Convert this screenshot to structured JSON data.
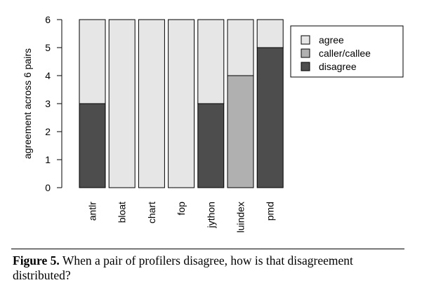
{
  "chart_data": {
    "type": "bar",
    "stacked": true,
    "title": "",
    "xlabel": "",
    "ylabel": "agreement across 6 pairs",
    "ylim": [
      0,
      6
    ],
    "yticks": [
      "0",
      "1",
      "2",
      "3",
      "4",
      "5",
      "6"
    ],
    "categories": [
      "antlr",
      "bloat",
      "chart",
      "fop",
      "jython",
      "luindex",
      "pmd"
    ],
    "series": [
      {
        "name": "disagree",
        "color": "#4d4d4d",
        "values": [
          3,
          0,
          0,
          0,
          3,
          0,
          5
        ]
      },
      {
        "name": "caller/callee",
        "color": "#b0b0b0",
        "values": [
          0,
          0,
          0,
          0,
          0,
          4,
          0
        ]
      },
      {
        "name": "agree",
        "color": "#e6e6e6",
        "values": [
          3,
          6,
          6,
          6,
          3,
          2,
          1
        ]
      }
    ],
    "legend_order": [
      "agree",
      "caller/callee",
      "disagree"
    ],
    "legend_position": "top-right",
    "grid": false
  },
  "caption": {
    "label": "Figure 5.",
    "text": "When a pair of profilers disagree, how is that disagreement distributed?"
  }
}
